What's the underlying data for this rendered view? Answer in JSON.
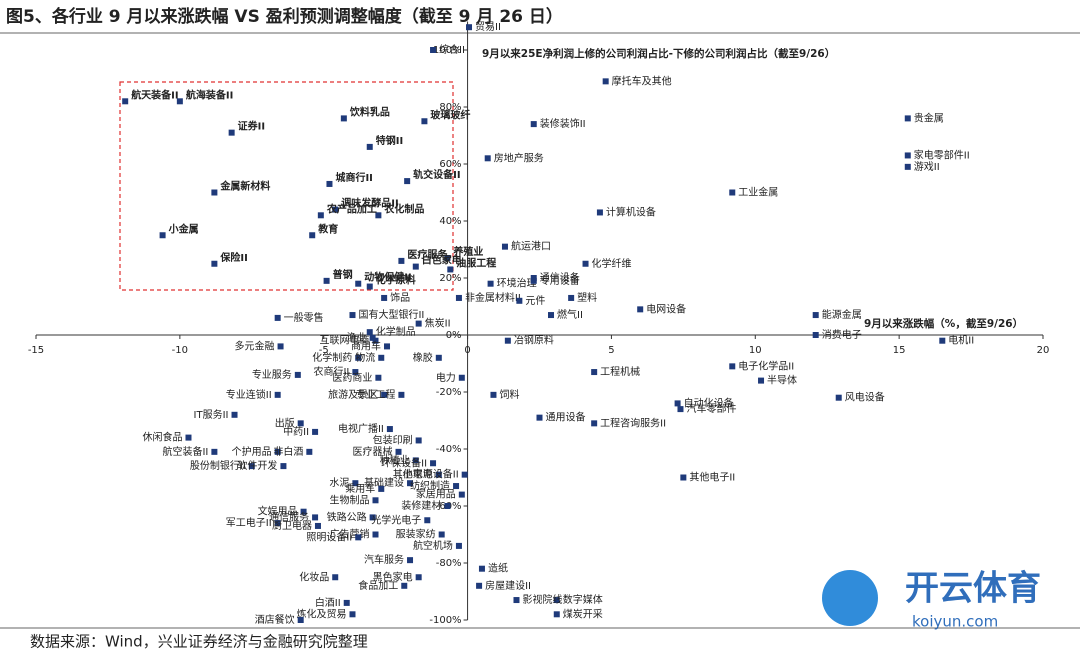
{
  "chart_data": {
    "type": "scatter",
    "title": "图5、各行业 9 月以来涨跌幅 VS 盈利预测调整幅度（截至 9 月 26 日）",
    "y_label": "9月以来25E净利润上修的公司利润占比-下修的公司利润占比（截至9/26）",
    "x_label": "9月以来涨跌幅（%，截至9/26）",
    "source": "数据来源：Wind，兴业证券经济与金融研究院整理",
    "color": "#1f3a7a",
    "xlim": [
      -15,
      20
    ],
    "xticks": [
      -15,
      -10,
      -5,
      0,
      5,
      10,
      15,
      20
    ],
    "ylim": [
      -100,
      110
    ],
    "yticks": [
      {
        "value": -100,
        "label": "-100%"
      },
      {
        "value": -80,
        "label": "-80%"
      },
      {
        "value": -60,
        "label": "-60%"
      },
      {
        "value": -40,
        "label": "-40%"
      },
      {
        "value": -20,
        "label": "-20%"
      },
      {
        "value": 0,
        "label": "0%"
      },
      {
        "value": 20,
        "label": "20%"
      },
      {
        "value": 40,
        "label": "40%"
      },
      {
        "value": 60,
        "label": "60%"
      },
      {
        "value": 80,
        "label": "80%"
      },
      {
        "value": 100,
        "label": "100%"
      }
    ],
    "labels": [
      "航天装备II",
      "航海装备II",
      "证券II",
      "饮料乳品",
      "玻璃玻纤",
      "特钢II",
      "城商行II",
      "轨交设备II",
      "金属新材料",
      "调味发酵品II",
      "农化制品",
      "农产品加工",
      "小金属",
      "教育",
      "医疗服务",
      "养殖业",
      "白色家电",
      "保险II",
      "动物保健II",
      "普钢",
      "化学原料",
      "综合II",
      "贸易II",
      "摩托车及其他",
      "贵金属",
      "装修装饰II",
      "家电零部件II",
      "游戏II",
      "房地产服务",
      "工业金属",
      "计算机设备",
      "航运港口",
      "化学纤维",
      "通信设备",
      "环境治理",
      "专用设备",
      "油服工程",
      "饰品",
      "塑料",
      "非金属材料II",
      "元件",
      "燃气II",
      "电网设备",
      "能源金属",
      "一般零售",
      "国有大型银行II",
      "焦炭II",
      "化学制品",
      "消费电子",
      "电机II",
      "渔业",
      "互联网电商",
      "冶钢原料",
      "多元金融",
      "商用车",
      "化学制药",
      "物流",
      "橡胶",
      "电力",
      "专业服务",
      "农商行II",
      "医药商业",
      "工程机械",
      "电子化学品II",
      "半导体",
      "专业连锁II",
      "旅游及景区",
      "专业工程",
      "饲料",
      "自动化设备",
      "汽车零部件",
      "风电设备",
      "IT服务II",
      "出版",
      "通用设备",
      "中药II",
      "电视广播II",
      "工程咨询服务II",
      "休闲食品",
      "包装印刷",
      "航空装备II",
      "个护用品",
      "非白酒",
      "医疗器械",
      "种植业",
      "股份制银行II",
      "环保设备II",
      "软件开发",
      "小家电",
      "其他电源设备II",
      "其他电子II",
      "水泥",
      "基础建设",
      "纺织制造",
      "乘用车",
      "家居用品",
      "生物制品",
      "装修建材",
      "文娱用品",
      "通信服务",
      "铁路公路",
      "光学光电子",
      "军工电子II",
      "厨卫电器",
      "服装家纺",
      "广告营销",
      "照明设备II",
      "航空机场",
      "汽车服务",
      "造纸",
      "化妆品",
      "黑色家电",
      "食品加工",
      "房屋建设II",
      "数字媒体",
      "影视院线",
      "白酒II",
      "炼化及贸易",
      "煤炭开采",
      "酒店餐饮"
    ],
    "x": [
      -11.9,
      -10.0,
      -8.2,
      -4.3,
      -1.5,
      -3.4,
      -4.8,
      -2.1,
      -8.8,
      -4.6,
      -3.1,
      -5.1,
      -10.6,
      -5.4,
      -2.3,
      -0.7,
      -1.8,
      -8.8,
      -3.8,
      -4.9,
      -3.4,
      -1.2,
      0.05,
      4.8,
      15.3,
      2.3,
      15.3,
      15.3,
      0.7,
      9.2,
      4.6,
      1.3,
      4.1,
      2.3,
      0.8,
      2.3,
      -0.6,
      -2.9,
      3.6,
      -0.3,
      1.8,
      2.9,
      6.0,
      12.1,
      -6.6,
      -4.0,
      -1.7,
      -3.4,
      12.1,
      16.5,
      -3.3,
      -3.2,
      1.4,
      -6.5,
      -2.8,
      -3.8,
      -3.0,
      -1.0,
      -0.2,
      -5.9,
      -3.9,
      -3.1,
      4.4,
      9.2,
      10.2,
      -6.6,
      -2.9,
      -2.3,
      0.9,
      7.3,
      7.4,
      12.9,
      -8.1,
      -5.8,
      2.5,
      -5.3,
      -2.7,
      4.4,
      -9.7,
      -1.7,
      -8.8,
      -6.6,
      -5.5,
      -2.4,
      -1.8,
      -7.5,
      -1.2,
      -6.4,
      -1.0,
      -0.1,
      7.5,
      -3.9,
      -2.0,
      -0.4,
      -3.0,
      -0.2,
      -3.2,
      -0.7,
      -5.7,
      -5.3,
      -3.3,
      -1.4,
      -6.6,
      -5.2,
      -0.9,
      -3.2,
      -3.8,
      -0.3,
      -2.0,
      0.5,
      -4.6,
      -1.7,
      -2.2,
      0.4,
      3.1,
      1.7,
      -4.2,
      -4.0,
      3.1,
      -5.8
    ],
    "values": [
      82,
      82,
      71,
      76,
      75,
      66,
      53,
      54,
      50,
      44,
      42,
      42,
      35,
      35,
      26,
      27,
      24,
      25,
      18,
      19,
      17,
      100,
      108,
      89,
      76,
      74,
      63,
      59,
      62,
      50,
      43,
      31,
      25,
      20,
      18,
      19,
      23,
      13,
      13,
      13,
      12,
      7,
      9,
      7,
      6,
      7,
      4,
      1,
      0,
      -2,
      -1,
      -2,
      -2,
      -4,
      -4,
      -8,
      -8,
      -8,
      -15,
      -14,
      -13,
      -15,
      -13,
      -11,
      -16,
      -21,
      -21,
      -21,
      -21,
      -24,
      -26,
      -22,
      -28,
      -31,
      -29,
      -34,
      -33,
      -31,
      -36,
      -37,
      -41,
      -41,
      -41,
      -41,
      -44,
      -46,
      -45,
      -46,
      -49,
      -49,
      -50,
      -52,
      -52,
      -53,
      -54,
      -56,
      -58,
      -60,
      -62,
      -64,
      -64,
      -65,
      -66,
      -67,
      -70,
      -70,
      -71,
      -74,
      -79,
      -82,
      -85,
      -85,
      -88,
      -88,
      -93,
      -93,
      -94,
      -98,
      -98,
      -100
    ]
  },
  "watermark": {
    "brand": "开云体育",
    "url": "koiyun.com"
  }
}
